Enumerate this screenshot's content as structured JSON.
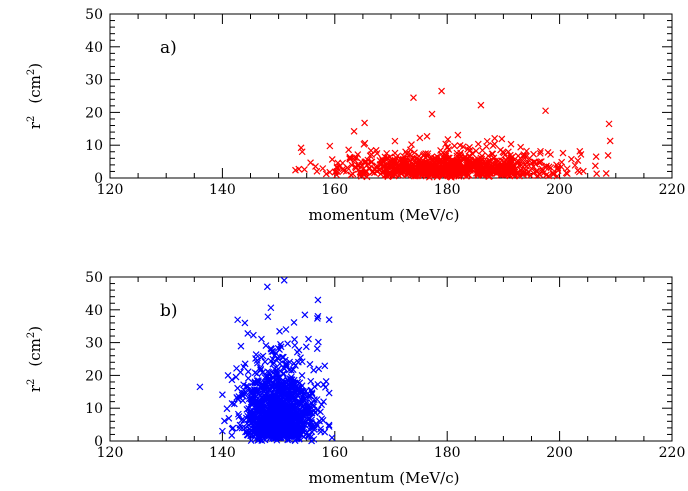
{
  "chart_data": [
    {
      "type": "scatter",
      "panel_label": "a)",
      "xlabel": "momentum  (MeV/c)",
      "ylabel_main": "r",
      "ylabel_sup": "2",
      "ylabel_unit_open": "(cm",
      "ylabel_unit_sup": "2",
      "ylabel_unit_close": ")",
      "xlim": [
        120,
        220
      ],
      "ylim": [
        0,
        50
      ],
      "x_ticks": [
        120,
        140,
        160,
        180,
        200,
        220
      ],
      "y_ticks": [
        0,
        10,
        20,
        30,
        40,
        50
      ],
      "marker": "x",
      "color": "#ff0000",
      "distribution": {
        "x_range_observed": [
          153,
          209
        ],
        "x_peak": 180,
        "y_typical_max": 12,
        "y_max_observed": 27,
        "approx_points": 900
      },
      "highlights": [
        {
          "x": 179,
          "y": 26.5
        },
        {
          "x": 174,
          "y": 24.5
        },
        {
          "x": 186,
          "y": 22.2
        },
        {
          "x": 197.5,
          "y": 20.5
        },
        {
          "x": 208.8,
          "y": 16.5
        },
        {
          "x": 165.3,
          "y": 16.8
        },
        {
          "x": 177.3,
          "y": 19.5
        },
        {
          "x": 154,
          "y": 9.2
        },
        {
          "x": 154.2,
          "y": 8
        },
        {
          "x": 206.5,
          "y": 6.5
        }
      ]
    },
    {
      "type": "scatter",
      "panel_label": "b)",
      "xlabel": "momentum  (MeV/c)",
      "ylabel_main": "r",
      "ylabel_sup": "2",
      "ylabel_unit_open": "(cm",
      "ylabel_unit_sup": "2",
      "ylabel_unit_close": ")",
      "xlim": [
        120,
        220
      ],
      "ylim": [
        0,
        50
      ],
      "x_ticks": [
        120,
        140,
        160,
        180,
        200,
        220
      ],
      "y_ticks": [
        0,
        10,
        20,
        30,
        40,
        50
      ],
      "marker": "x",
      "color": "#0000ff",
      "distribution": {
        "x_range_observed": [
          136,
          159
        ],
        "x_peak": 150,
        "y_max_observed": 49,
        "approx_points": 1200
      },
      "highlights": [
        {
          "x": 136,
          "y": 16.5
        },
        {
          "x": 151,
          "y": 49
        },
        {
          "x": 148,
          "y": 47
        },
        {
          "x": 157,
          "y": 43
        },
        {
          "x": 159,
          "y": 37
        },
        {
          "x": 157,
          "y": 38
        },
        {
          "x": 144,
          "y": 36
        },
        {
          "x": 141,
          "y": 20
        },
        {
          "x": 158,
          "y": 12
        },
        {
          "x": 159.5,
          "y": 1
        }
      ]
    }
  ]
}
